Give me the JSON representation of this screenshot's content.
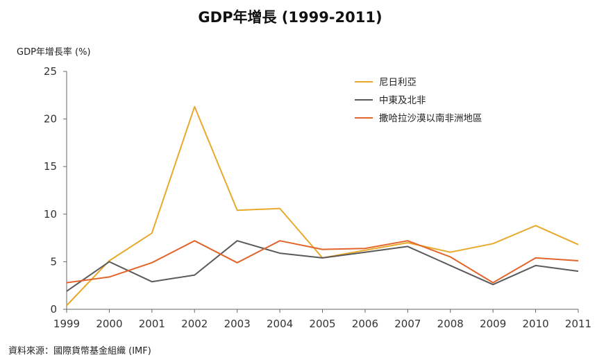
{
  "chart_data": {
    "type": "line",
    "title": "GDP年增長 (1999-2011)",
    "ylabel": "GDP年增長率 (%)",
    "xlabel": "",
    "source": "資料來源：國際貨幣基金組織 (IMF)",
    "categories": [
      "1999",
      "2000",
      "2001",
      "2002",
      "2003",
      "2004",
      "2005",
      "2006",
      "2007",
      "2008",
      "2009",
      "2010",
      "2011"
    ],
    "ylim": [
      0,
      25
    ],
    "yticks": [
      "0",
      "5",
      "10",
      "15",
      "20",
      "25"
    ],
    "grid": false,
    "legend_position": "top-right",
    "series": [
      {
        "name": "尼日利亞",
        "color": "#e8a92a",
        "values": [
          0.4,
          5.1,
          8.0,
          21.3,
          10.4,
          10.6,
          5.4,
          6.2,
          7.0,
          6.0,
          6.9,
          8.8,
          6.8
        ]
      },
      {
        "name": "中東及北非",
        "color": "#5a5a5a",
        "values": [
          1.9,
          5.0,
          2.9,
          3.6,
          7.2,
          5.9,
          5.4,
          6.0,
          6.6,
          4.6,
          2.6,
          4.6,
          4.0
        ]
      },
      {
        "name": "撒哈拉沙漠以南非洲地區",
        "color": "#e2642a",
        "values": [
          2.8,
          3.4,
          4.9,
          7.2,
          4.9,
          7.2,
          6.3,
          6.4,
          7.2,
          5.5,
          2.8,
          5.4,
          5.1
        ]
      }
    ]
  }
}
